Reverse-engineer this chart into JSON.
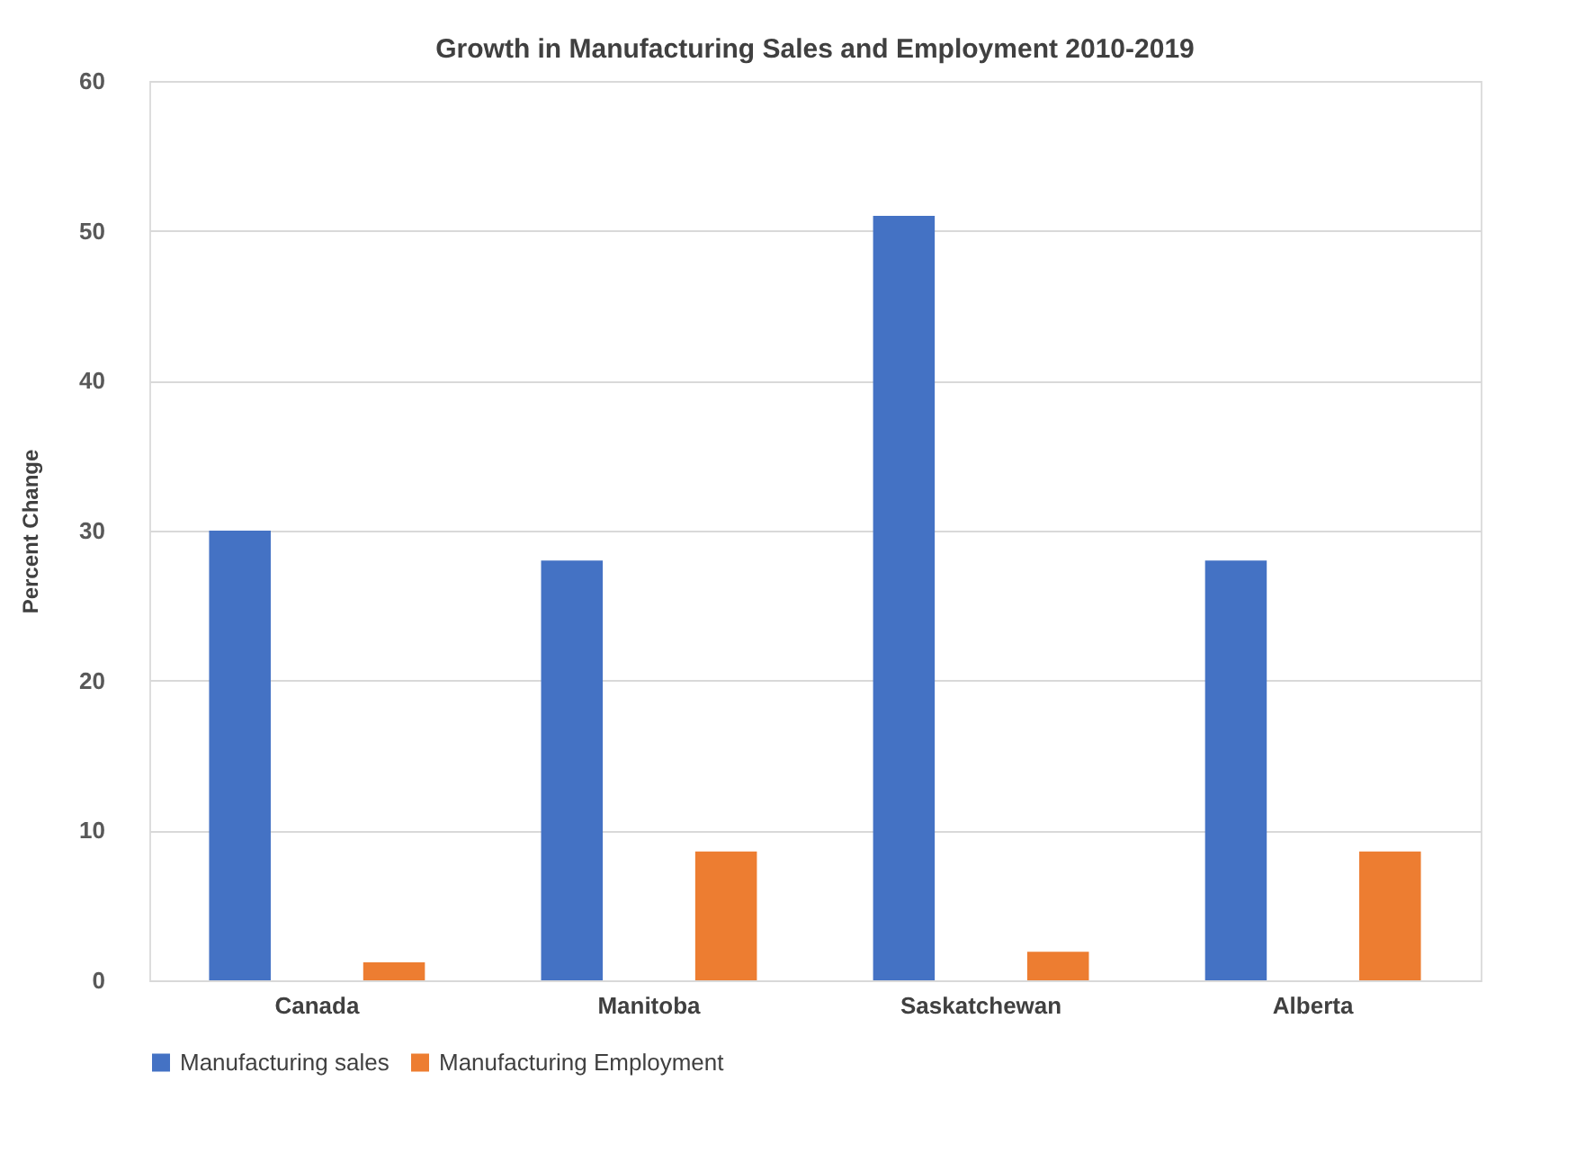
{
  "chart_data": {
    "type": "bar",
    "title": "Growth in Manufacturing Sales and Employment 2010-2019",
    "ylabel": "Percent Change",
    "categories": [
      "Canada",
      "Manitoba",
      "Saskatchewan",
      "Alberta"
    ],
    "series": [
      {
        "name": "Manufacturing sales",
        "color": "#4472c4",
        "values": [
          30,
          28,
          51,
          28
        ]
      },
      {
        "name": "Manufacturing Employment",
        "color": "#ed7d31",
        "values": [
          1.2,
          8.6,
          1.9,
          8.6
        ]
      }
    ],
    "ylim": [
      0,
      60
    ],
    "yticks": [
      0,
      10,
      20,
      30,
      40,
      50,
      60
    ],
    "grid": "y",
    "legend": "bottom"
  }
}
